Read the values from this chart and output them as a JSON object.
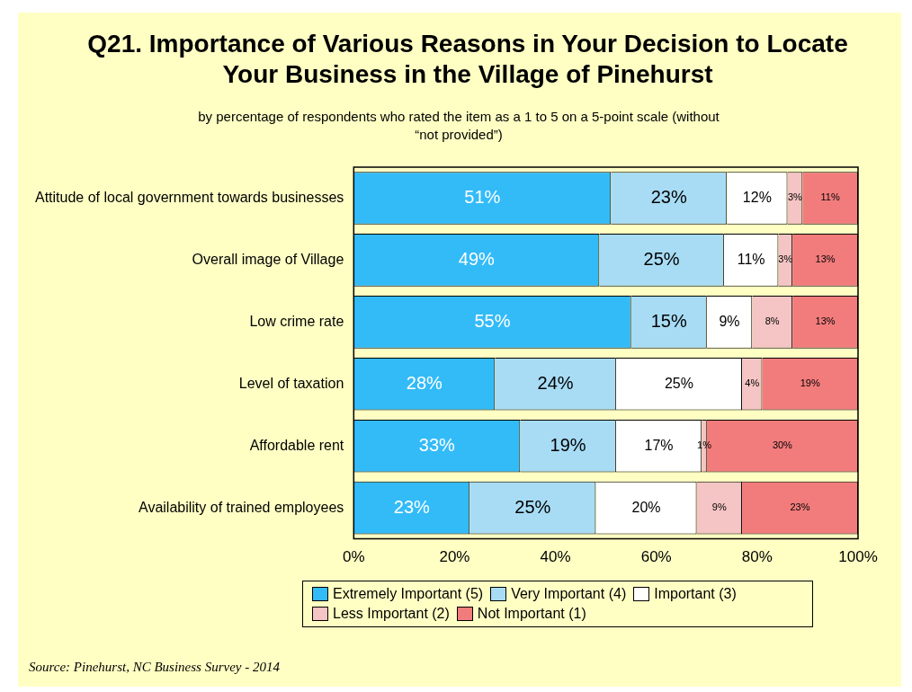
{
  "chart_data": {
    "type": "bar",
    "orientation": "horizontal",
    "stacked": true,
    "title": "Q21. Importance of Various Reasons in Your Decision to Locate Your Business in the Village of Pinehurst",
    "subtitle": "by percentage of respondents who rated the item as a 1 to 5 on a 5-point scale (without “not provided”)",
    "categories": [
      "Attitude of local government towards businesses",
      "Overall image of Village",
      "Low crime rate",
      "Level of taxation",
      "Affordable rent",
      "Availability of trained employees"
    ],
    "series": [
      {
        "name": "Extremely Important (5)",
        "color": "#33bbf8",
        "values": [
          51,
          48.7,
          55,
          28,
          33,
          23
        ],
        "value_labels": [
          "51%",
          "49%",
          "55%",
          "28%",
          "33%",
          "23%"
        ]
      },
      {
        "name": "Very Important (4)",
        "color": "#a8dcf5",
        "values": [
          23,
          24.7,
          15,
          24,
          19,
          25
        ],
        "value_labels": [
          "23%",
          "25%",
          "15%",
          "24%",
          "19%",
          "25%"
        ]
      },
      {
        "name": "Important (3)",
        "color": "#ffffff",
        "values": [
          12,
          10.8,
          9,
          25,
          17,
          20
        ],
        "value_labels": [
          "12%",
          "11%",
          "9%",
          "25%",
          "17%",
          "20%"
        ]
      },
      {
        "name": "Less Important (2)",
        "color": "#f5c4c4",
        "values": [
          3,
          2.8,
          8,
          4,
          1,
          9
        ],
        "value_labels": [
          "3%",
          "3%",
          "8%",
          "4%",
          "1%",
          "9%"
        ]
      },
      {
        "name": "Not Important (1)",
        "color": "#f27c7c",
        "values": [
          11,
          13,
          13,
          19,
          30,
          23
        ],
        "value_labels": [
          "11%",
          "13%",
          "13%",
          "19%",
          "30%",
          "23%"
        ]
      }
    ],
    "xlim": [
      0,
      100
    ],
    "xticks": [
      {
        "value": 0,
        "label": "0%"
      },
      {
        "value": 20,
        "label": "20%"
      },
      {
        "value": 40,
        "label": "40%"
      },
      {
        "value": 60,
        "label": "60%"
      },
      {
        "value": 80,
        "label": "80%"
      },
      {
        "value": 100,
        "label": "100%"
      }
    ],
    "grid": false,
    "legend": "bottom",
    "annotations": [
      "Source:  Pinehurst, NC Business Survey - 2014"
    ]
  }
}
